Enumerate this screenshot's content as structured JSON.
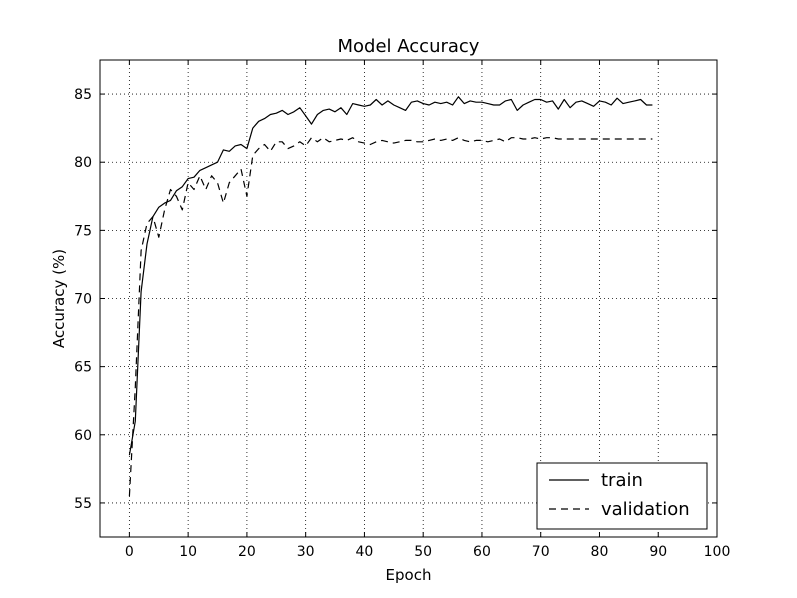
{
  "chart_data": {
    "type": "line",
    "title": "Model Accuracy",
    "xlabel": "Epoch",
    "ylabel": "Accuracy (%)",
    "xlim": [
      -5,
      100
    ],
    "ylim": [
      52.5,
      87.5
    ],
    "xticks": [
      0,
      10,
      20,
      30,
      40,
      50,
      60,
      70,
      80,
      90,
      100
    ],
    "yticks": [
      55,
      60,
      65,
      70,
      75,
      80,
      85
    ],
    "grid": true,
    "legend_position": "lower-right",
    "series": [
      {
        "name": "train",
        "style": "solid",
        "color": "#000000",
        "x": [
          0,
          1,
          2,
          3,
          4,
          5,
          6,
          7,
          8,
          9,
          10,
          11,
          12,
          13,
          14,
          15,
          16,
          17,
          18,
          19,
          20,
          21,
          22,
          23,
          24,
          25,
          26,
          27,
          28,
          29,
          30,
          31,
          32,
          33,
          34,
          35,
          36,
          37,
          38,
          39,
          40,
          41,
          42,
          43,
          44,
          45,
          46,
          47,
          48,
          49,
          50,
          51,
          52,
          53,
          54,
          55,
          56,
          57,
          58,
          59,
          60,
          61,
          62,
          63,
          64,
          65,
          66,
          67,
          68,
          69,
          70,
          71,
          72,
          73,
          74,
          75,
          76,
          77,
          78,
          79,
          80,
          81,
          82,
          83,
          84,
          85,
          86,
          87,
          88,
          89
        ],
        "values": [
          58.5,
          61.0,
          70.5,
          74.0,
          76.0,
          76.7,
          77.0,
          77.2,
          77.9,
          78.2,
          78.8,
          78.9,
          79.4,
          79.6,
          79.8,
          80.0,
          80.9,
          80.8,
          81.2,
          81.3,
          81.0,
          82.5,
          83.0,
          83.2,
          83.5,
          83.6,
          83.8,
          83.5,
          83.7,
          84.0,
          83.4,
          82.8,
          83.5,
          83.8,
          83.9,
          83.7,
          84.0,
          83.5,
          84.3,
          84.2,
          84.1,
          84.2,
          84.6,
          84.2,
          84.5,
          84.2,
          84.0,
          83.8,
          84.4,
          84.5,
          84.3,
          84.2,
          84.4,
          84.3,
          84.4,
          84.2,
          84.8,
          84.3,
          84.5,
          84.4,
          84.4,
          84.3,
          84.2,
          84.2,
          84.5,
          84.6,
          83.8,
          84.2,
          84.4,
          84.6,
          84.6,
          84.4,
          84.5,
          83.9,
          84.6,
          84.0,
          84.4,
          84.5,
          84.3,
          84.1,
          84.5,
          84.4,
          84.2,
          84.7,
          84.3,
          84.4,
          84.5,
          84.6,
          84.2,
          84.2
        ]
      },
      {
        "name": "validation",
        "style": "dashed",
        "color": "#000000",
        "x": [
          0,
          1,
          2,
          3,
          4,
          5,
          6,
          7,
          8,
          9,
          10,
          11,
          12,
          13,
          14,
          15,
          16,
          17,
          18,
          19,
          20,
          21,
          22,
          23,
          24,
          25,
          26,
          27,
          28,
          29,
          30,
          31,
          32,
          33,
          34,
          35,
          36,
          37,
          38,
          39,
          40,
          41,
          42,
          43,
          44,
          45,
          46,
          47,
          48,
          49,
          50,
          51,
          52,
          53,
          54,
          55,
          56,
          57,
          58,
          59,
          60,
          61,
          62,
          63,
          64,
          65,
          66,
          67,
          68,
          69,
          70,
          71,
          72,
          73,
          74,
          75,
          76,
          77,
          78,
          79,
          80,
          81,
          82,
          83,
          84,
          85,
          86,
          87,
          88,
          89
        ],
        "values": [
          55.5,
          63.5,
          73.5,
          75.5,
          76.0,
          74.5,
          76.5,
          78.0,
          77.5,
          76.5,
          78.5,
          78.0,
          79.0,
          78.0,
          79.0,
          78.5,
          77.0,
          78.5,
          79.0,
          79.5,
          77.5,
          80.5,
          81.0,
          81.3,
          80.8,
          81.5,
          81.5,
          81.0,
          81.2,
          81.5,
          81.2,
          81.8,
          81.5,
          81.8,
          81.5,
          81.6,
          81.7,
          81.6,
          81.8,
          81.5,
          81.4,
          81.3,
          81.5,
          81.6,
          81.5,
          81.4,
          81.5,
          81.6,
          81.6,
          81.5,
          81.5,
          81.6,
          81.7,
          81.6,
          81.7,
          81.6,
          81.8,
          81.6,
          81.5,
          81.6,
          81.6,
          81.5,
          81.6,
          81.7,
          81.5,
          81.8,
          81.8,
          81.7,
          81.7,
          81.8,
          81.7,
          81.8,
          81.8,
          81.7,
          81.7,
          81.7,
          81.7,
          81.7,
          81.7,
          81.7,
          81.7,
          81.7,
          81.7,
          81.7,
          81.7,
          81.7,
          81.7,
          81.7,
          81.7,
          81.7
        ]
      }
    ]
  }
}
